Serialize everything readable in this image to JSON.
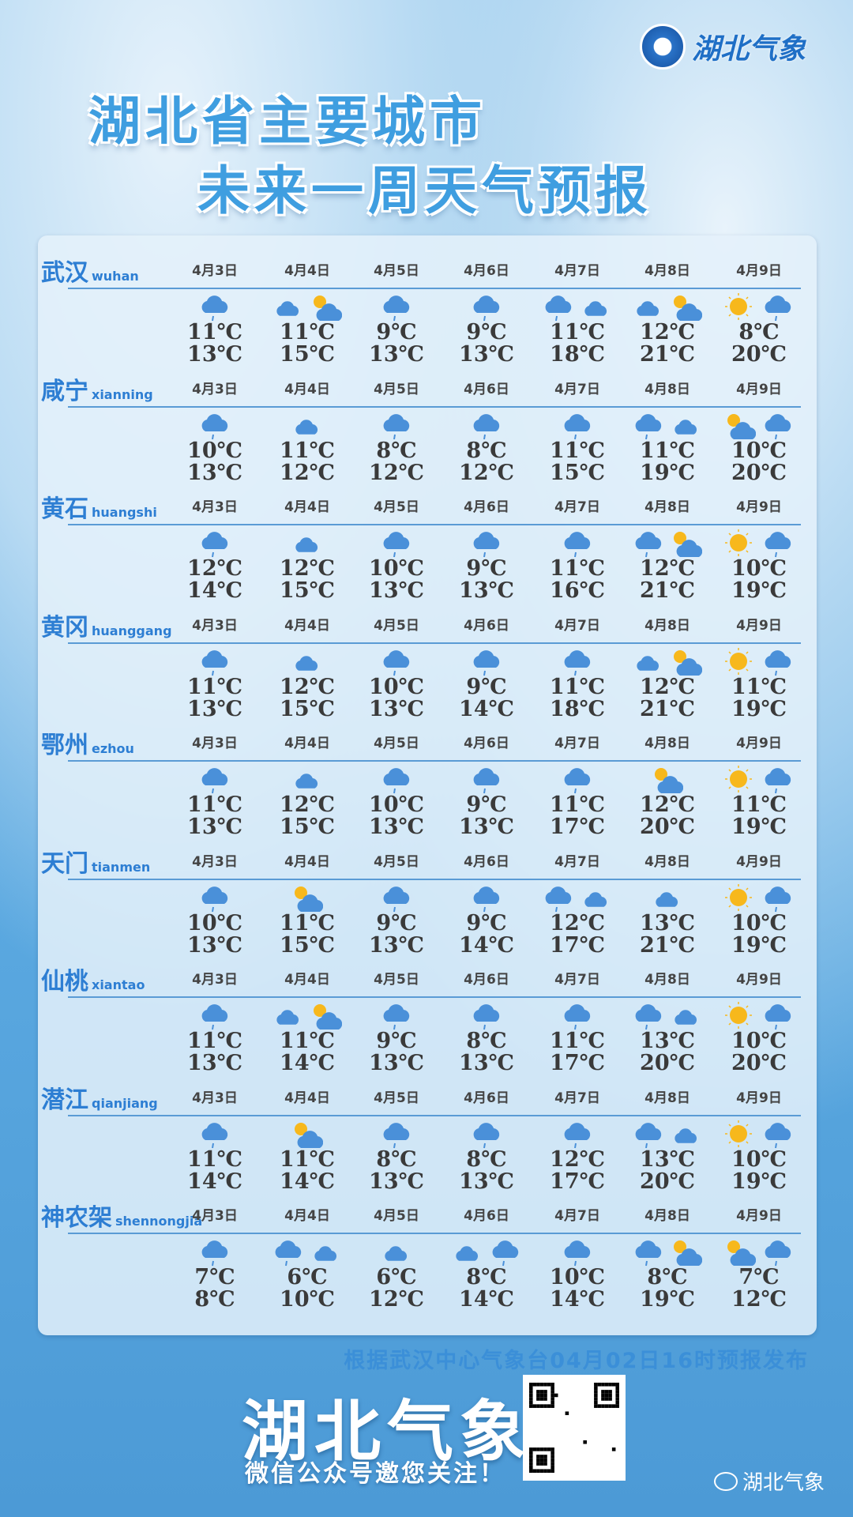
{
  "header": {
    "logo_text": "湖北气象",
    "title_line1": "湖北省主要城市",
    "title_line2": "未来一周天气预报"
  },
  "dates": [
    "4月3日",
    "4月4日",
    "4月5日",
    "4月6日",
    "4月7日",
    "4月8日",
    "4月9日"
  ],
  "cities": [
    {
      "name": "武汉",
      "pinyin": "wuhan",
      "icons": [
        [
          "rain"
        ],
        [
          "cloud",
          "sun-cloud"
        ],
        [
          "rain"
        ],
        [
          "rain"
        ],
        [
          "rain",
          "cloud"
        ],
        [
          "cloud",
          "sun-cloud"
        ],
        [
          "sun",
          "rain"
        ]
      ],
      "low": [
        "11℃",
        "11℃",
        "9℃",
        "9℃",
        "11℃",
        "12℃",
        "8℃"
      ],
      "high": [
        "13℃",
        "15℃",
        "13℃",
        "13℃",
        "18℃",
        "21℃",
        "20℃"
      ]
    },
    {
      "name": "咸宁",
      "pinyin": "xianning",
      "icons": [
        [
          "rain"
        ],
        [
          "cloud"
        ],
        [
          "rain"
        ],
        [
          "rain"
        ],
        [
          "rain"
        ],
        [
          "rain",
          "cloud"
        ],
        [
          "sun-cloud",
          "rain"
        ]
      ],
      "low": [
        "10℃",
        "11℃",
        "8℃",
        "8℃",
        "11℃",
        "11℃",
        "10℃"
      ],
      "high": [
        "13℃",
        "12℃",
        "12℃",
        "12℃",
        "15℃",
        "19℃",
        "20℃"
      ]
    },
    {
      "name": "黄石",
      "pinyin": "huangshi",
      "icons": [
        [
          "rain"
        ],
        [
          "cloud"
        ],
        [
          "rain"
        ],
        [
          "rain"
        ],
        [
          "rain"
        ],
        [
          "rain",
          "sun-cloud"
        ],
        [
          "sun",
          "rain"
        ]
      ],
      "low": [
        "12℃",
        "12℃",
        "10℃",
        "9℃",
        "11℃",
        "12℃",
        "10℃"
      ],
      "high": [
        "14℃",
        "15℃",
        "13℃",
        "13℃",
        "16℃",
        "21℃",
        "19℃"
      ]
    },
    {
      "name": "黄冈",
      "pinyin": "huanggang",
      "icons": [
        [
          "rain"
        ],
        [
          "cloud"
        ],
        [
          "rain"
        ],
        [
          "rain"
        ],
        [
          "rain"
        ],
        [
          "cloud",
          "sun-cloud"
        ],
        [
          "sun",
          "rain"
        ]
      ],
      "low": [
        "11℃",
        "12℃",
        "10℃",
        "9℃",
        "11℃",
        "12℃",
        "11℃"
      ],
      "high": [
        "13℃",
        "15℃",
        "13℃",
        "14℃",
        "18℃",
        "21℃",
        "19℃"
      ]
    },
    {
      "name": "鄂州",
      "pinyin": "ezhou",
      "icons": [
        [
          "rain"
        ],
        [
          "cloud"
        ],
        [
          "rain"
        ],
        [
          "rain"
        ],
        [
          "rain"
        ],
        [
          "sun-cloud"
        ],
        [
          "sun",
          "rain"
        ]
      ],
      "low": [
        "11℃",
        "12℃",
        "10℃",
        "9℃",
        "11℃",
        "12℃",
        "11℃"
      ],
      "high": [
        "13℃",
        "15℃",
        "13℃",
        "13℃",
        "17℃",
        "20℃",
        "19℃"
      ]
    },
    {
      "name": "天门",
      "pinyin": "tianmen",
      "icons": [
        [
          "rain"
        ],
        [
          "sun-cloud"
        ],
        [
          "rain"
        ],
        [
          "rain"
        ],
        [
          "rain",
          "cloud"
        ],
        [
          "cloud"
        ],
        [
          "sun",
          "rain"
        ]
      ],
      "low": [
        "10℃",
        "11℃",
        "9℃",
        "9℃",
        "12℃",
        "13℃",
        "10℃"
      ],
      "high": [
        "13℃",
        "15℃",
        "13℃",
        "14℃",
        "17℃",
        "21℃",
        "19℃"
      ]
    },
    {
      "name": "仙桃",
      "pinyin": "xiantao",
      "icons": [
        [
          "rain"
        ],
        [
          "cloud",
          "sun-cloud"
        ],
        [
          "rain"
        ],
        [
          "rain"
        ],
        [
          "rain"
        ],
        [
          "rain",
          "cloud"
        ],
        [
          "sun",
          "rain"
        ]
      ],
      "low": [
        "11℃",
        "11℃",
        "9℃",
        "8℃",
        "11℃",
        "13℃",
        "10℃"
      ],
      "high": [
        "13℃",
        "14℃",
        "13℃",
        "13℃",
        "17℃",
        "20℃",
        "20℃"
      ]
    },
    {
      "name": "潜江",
      "pinyin": "qianjiang",
      "icons": [
        [
          "rain"
        ],
        [
          "sun-cloud"
        ],
        [
          "rain"
        ],
        [
          "rain"
        ],
        [
          "rain"
        ],
        [
          "rain",
          "cloud"
        ],
        [
          "sun",
          "rain"
        ]
      ],
      "low": [
        "11℃",
        "11℃",
        "8℃",
        "8℃",
        "12℃",
        "13℃",
        "10℃"
      ],
      "high": [
        "14℃",
        "14℃",
        "13℃",
        "13℃",
        "17℃",
        "20℃",
        "19℃"
      ]
    },
    {
      "name": "神农架",
      "pinyin": "shennongjia",
      "icons": [
        [
          "rain"
        ],
        [
          "rain",
          "cloud"
        ],
        [
          "cloud"
        ],
        [
          "cloud",
          "rain"
        ],
        [
          "rain"
        ],
        [
          "rain",
          "sun-cloud"
        ],
        [
          "sun-cloud",
          "rain"
        ]
      ],
      "low": [
        "7℃",
        "6℃",
        "6℃",
        "8℃",
        "10℃",
        "8℃",
        "7℃"
      ],
      "high": [
        "8℃",
        "10℃",
        "12℃",
        "14℃",
        "14℃",
        "19℃",
        "12℃"
      ]
    }
  ],
  "footer": {
    "note": "根据武汉中心气象台04月02日16时预报发布",
    "brand": "湖北气象",
    "follow": "微信公众号邀您关注！",
    "watermark": "湖北气象"
  },
  "colors": {
    "cloud": "#4a90d9",
    "sun": "#f7b81c",
    "accent": "#2d7ed3"
  }
}
